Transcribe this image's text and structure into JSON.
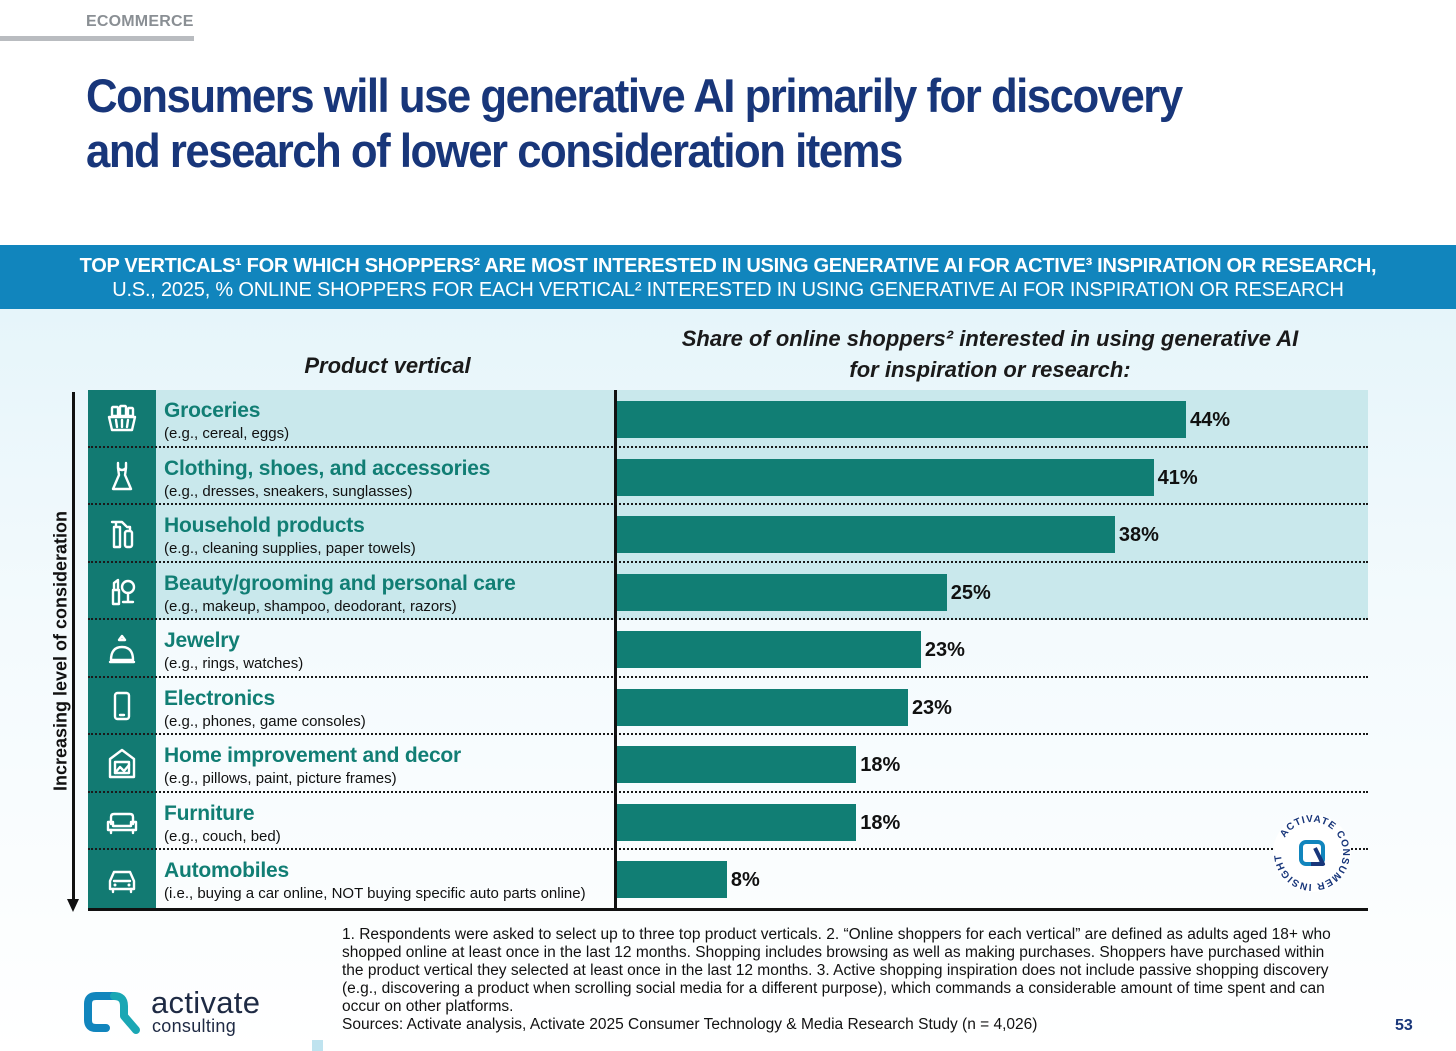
{
  "section": "ECOMMERCE",
  "title": "Consumers will use generative AI primarily for discovery and research of lower consideration items",
  "banner": {
    "line1": "TOP VERTICALS¹ FOR WHICH SHOPPERS² ARE MOST INTERESTED IN USING GENERATIVE AI FOR ACTIVE³ INSPIRATION OR RESEARCH,",
    "line2": "U.S., 2025, % ONLINE SHOPPERS FOR EACH VERTICAL² INTERESTED IN USING GENERATIVE AI FOR INSPIRATION OR RESEARCH"
  },
  "chart_data": {
    "type": "bar",
    "orientation": "horizontal",
    "left_header": "Product vertical",
    "right_header_line1": "Share of online shoppers² interested in using generative AI",
    "right_header_line2": "for inspiration or research:",
    "axis_label": "Increasing level of consideration",
    "xlim": [
      0,
      58
    ],
    "unit": "%",
    "rows": [
      {
        "label": "Groceries",
        "example": "(e.g., cereal, eggs)",
        "value": 44,
        "value_label": "44%",
        "icon": "grocery-basket-icon",
        "highlight": true
      },
      {
        "label": "Clothing, shoes, and accessories",
        "example": "(e.g., dresses, sneakers, sunglasses)",
        "value": 41.5,
        "value_label": "41%",
        "icon": "dress-icon",
        "highlight": true
      },
      {
        "label": "Household products",
        "example": "(e.g., cleaning supplies, paper towels)",
        "value": 38.5,
        "value_label": "38%",
        "icon": "spray-bottle-icon",
        "highlight": true
      },
      {
        "label": "Beauty/grooming and personal care",
        "example": "(e.g., makeup, shampoo, deodorant, razors)",
        "value": 25.5,
        "value_label": "25%",
        "icon": "lipstick-mirror-icon",
        "highlight": true
      },
      {
        "label": "Jewelry",
        "example": "(e.g., rings, watches)",
        "value": 23.5,
        "value_label": "23%",
        "icon": "ring-icon",
        "highlight": false
      },
      {
        "label": "Electronics",
        "example": "(e.g., phones, game consoles)",
        "value": 22.5,
        "value_label": "23%",
        "icon": "phone-icon",
        "highlight": false
      },
      {
        "label": "Home improvement and decor",
        "example": "(e.g., pillows, paint, picture frames)",
        "value": 18.5,
        "value_label": "18%",
        "icon": "picture-frame-icon",
        "highlight": false
      },
      {
        "label": "Furniture",
        "example": "(e.g., couch, bed)",
        "value": 18.5,
        "value_label": "18%",
        "icon": "sofa-icon",
        "highlight": false
      },
      {
        "label": "Automobiles",
        "example": "(i.e., buying a car online, NOT buying specific auto parts online)",
        "value": 8.5,
        "value_label": "8%",
        "icon": "car-icon",
        "highlight": false
      }
    ]
  },
  "badge": {
    "text": "ACTIVATE CONSUMER INSIGHT",
    "icon": "activate-badge-icon"
  },
  "footnote": "1. Respondents were asked to select up to three top product verticals.  2. “Online shoppers for each vertical” are defined as adults aged 18+ who shopped online at least once in the last 12 months. Shopping includes browsing as well as making purchases. Shoppers have purchased within the product vertical they selected at least once in the last 12 months.  3. Active shopping inspiration does not include passive shopping discovery (e.g., discovering a product when scrolling social media for a different purpose), which commands a considerable amount of time spent and can occur on other platforms.",
  "sources": "Sources: Activate analysis, Activate 2025 Consumer Technology & Media Research Study (n = 4,026)",
  "page_number": "53",
  "logo": {
    "word": "activate",
    "sub": "consulting"
  },
  "colors": {
    "title": "#18367a",
    "banner": "#1185bd",
    "bar": "#117e74",
    "highlight_row": "#c9e8ec"
  }
}
